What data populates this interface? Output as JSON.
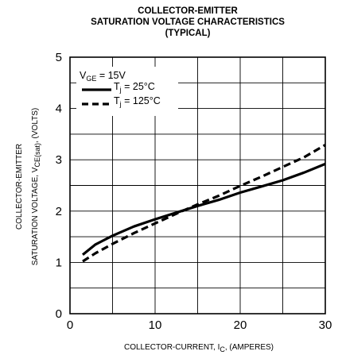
{
  "chart_data": {
    "type": "line",
    "title_lines": [
      "COLLECTOR-EMITTER",
      "SATURATION VOLTAGE CHARACTERISTICS",
      "(TYPICAL)"
    ],
    "xlabel": {
      "main": "COLLECTOR-CURRENT, I",
      "sub": "C",
      "tail": ", (AMPERES)"
    },
    "ylabel_lines": {
      "line1": "COLLECTOR-EMITTER",
      "line2_main": "SATURATION VOLTAGE, V",
      "line2_sub": "CE(sat)",
      "line2_tail": ", (VOLTS)"
    },
    "xlim": [
      0,
      30
    ],
    "ylim": [
      0,
      5
    ],
    "x_ticks": [
      0,
      10,
      20,
      30
    ],
    "y_ticks": [
      0,
      1,
      2,
      3,
      4,
      5
    ],
    "x_grid_step": 5,
    "y_grid_step": 0.5,
    "grid": true,
    "legend": {
      "position": "top-left",
      "condition": {
        "main": "V",
        "sub": "GE",
        "tail": " = 15V"
      },
      "entries": [
        {
          "main": "T",
          "sub": "j",
          "tail": " = 25°C",
          "style": "solid"
        },
        {
          "main": "T",
          "sub": "j",
          "tail": " = 125°C",
          "style": "dashed"
        }
      ]
    },
    "series": [
      {
        "style": "solid",
        "points": [
          [
            1.5,
            1.15
          ],
          [
            3,
            1.35
          ],
          [
            5,
            1.52
          ],
          [
            7.5,
            1.7
          ],
          [
            10,
            1.84
          ],
          [
            12.5,
            1.97
          ],
          [
            15,
            2.1
          ],
          [
            17.5,
            2.22
          ],
          [
            20,
            2.36
          ],
          [
            22.5,
            2.48
          ],
          [
            25,
            2.6
          ],
          [
            27.5,
            2.75
          ],
          [
            30,
            2.92
          ]
        ]
      },
      {
        "style": "dashed",
        "points": [
          [
            1.5,
            1.02
          ],
          [
            3,
            1.18
          ],
          [
            5,
            1.36
          ],
          [
            7.5,
            1.57
          ],
          [
            10,
            1.76
          ],
          [
            12.5,
            1.95
          ],
          [
            15,
            2.13
          ],
          [
            17.5,
            2.3
          ],
          [
            20,
            2.49
          ],
          [
            22.5,
            2.67
          ],
          [
            25,
            2.86
          ],
          [
            27.5,
            3.05
          ],
          [
            30,
            3.29
          ]
        ]
      }
    ]
  }
}
